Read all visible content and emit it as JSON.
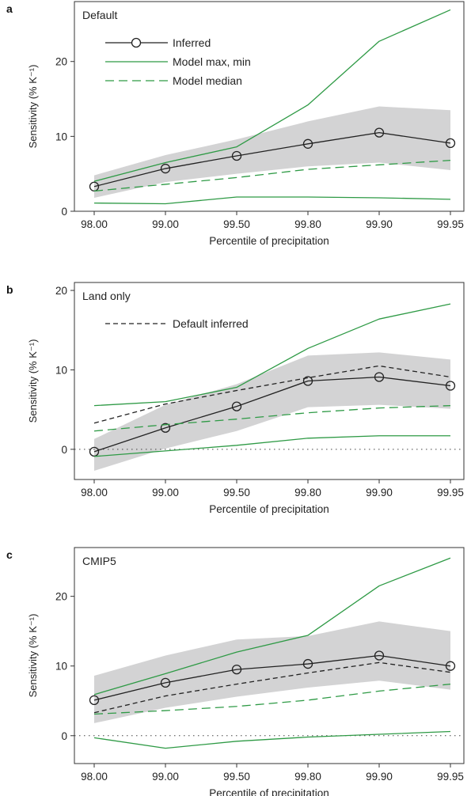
{
  "chart_data": [
    {
      "panel_label": "a",
      "type": "line",
      "title": "Default",
      "xlabel": "Percentile of precipitation",
      "ylabel": "Sensitivity (% K⁻¹)",
      "x": [
        "98.00",
        "99.00",
        "99.50",
        "99.80",
        "99.90",
        "99.95"
      ],
      "ylim": [
        0,
        28
      ],
      "yticks": [
        0,
        10,
        20
      ],
      "zero_line": false,
      "band": {
        "lower": [
          1.8,
          3.9,
          5.0,
          6.0,
          6.5,
          5.5
        ],
        "upper": [
          4.8,
          7.5,
          9.6,
          12.0,
          14.0,
          13.5
        ]
      },
      "series": [
        {
          "name": "Inferred",
          "style": "inferred",
          "values": [
            3.3,
            5.7,
            7.4,
            9.0,
            10.5,
            9.1
          ]
        },
        {
          "name": "Model max, min",
          "style": "model-max",
          "values": [
            4.0,
            6.5,
            8.6,
            14.2,
            22.7,
            26.9
          ]
        },
        {
          "name": "",
          "style": "model-min",
          "values": [
            1.1,
            1.0,
            1.9,
            1.9,
            1.8,
            1.6
          ]
        },
        {
          "name": "Model median",
          "style": "median",
          "values": [
            2.7,
            3.6,
            4.5,
            5.6,
            6.2,
            6.8
          ]
        }
      ],
      "legend": [
        {
          "label": "Inferred",
          "style": "inferred"
        },
        {
          "label": "Model max, min",
          "style": "model-max"
        },
        {
          "label": "Model median",
          "style": "median"
        }
      ]
    },
    {
      "panel_label": "b",
      "type": "line",
      "title": "Land only",
      "xlabel": "Percentile of precipitation",
      "ylabel": "Sensitivity (% K⁻¹)",
      "x": [
        "98.00",
        "99.00",
        "99.50",
        "99.80",
        "99.90",
        "99.95"
      ],
      "ylim": [
        -3.8,
        21
      ],
      "yticks": [
        0,
        10,
        20
      ],
      "zero_line": true,
      "band": {
        "lower": [
          -2.7,
          0.1,
          2.3,
          5.3,
          5.6,
          5.1
        ],
        "upper": [
          1.3,
          5.6,
          8.2,
          11.8,
          12.2,
          11.3
        ]
      },
      "series": [
        {
          "name": "",
          "style": "inferred",
          "values": [
            -0.3,
            2.7,
            5.4,
            8.6,
            9.1,
            8.0
          ]
        },
        {
          "name": "",
          "style": "model-max",
          "values": [
            5.5,
            6.0,
            7.8,
            12.7,
            16.4,
            18.3
          ]
        },
        {
          "name": "",
          "style": "model-min",
          "values": [
            -0.9,
            -0.2,
            0.5,
            1.4,
            1.7,
            1.7
          ]
        },
        {
          "name": "",
          "style": "median",
          "values": [
            2.3,
            3.1,
            3.8,
            4.6,
            5.2,
            5.5
          ]
        },
        {
          "name": "Default inferred",
          "style": "default-inferred",
          "values": [
            3.3,
            5.7,
            7.4,
            9.0,
            10.5,
            9.1
          ]
        }
      ],
      "legend": [
        {
          "label": "Default inferred",
          "style": "default-inferred"
        }
      ]
    },
    {
      "panel_label": "c",
      "type": "line",
      "title": "CMIP5",
      "xlabel": "Percentile of precipitation",
      "ylabel": "Sensitivity (% K⁻¹)",
      "x": [
        "98.00",
        "99.00",
        "99.50",
        "99.80",
        "99.90",
        "99.95"
      ],
      "ylim": [
        -4,
        27
      ],
      "yticks": [
        0,
        10,
        20
      ],
      "zero_line": true,
      "band": {
        "lower": [
          1.8,
          4.0,
          5.6,
          6.9,
          7.9,
          6.6
        ],
        "upper": [
          8.6,
          11.5,
          13.8,
          14.3,
          16.4,
          15.0
        ]
      },
      "series": [
        {
          "name": "",
          "style": "inferred",
          "values": [
            5.1,
            7.6,
            9.5,
            10.3,
            11.5,
            10.0
          ]
        },
        {
          "name": "",
          "style": "model-max",
          "values": [
            5.9,
            8.9,
            12.0,
            14.4,
            21.5,
            25.5
          ]
        },
        {
          "name": "",
          "style": "model-min",
          "values": [
            -0.3,
            -1.8,
            -0.8,
            -0.2,
            0.2,
            0.6
          ]
        },
        {
          "name": "",
          "style": "median",
          "values": [
            3.1,
            3.6,
            4.2,
            5.1,
            6.4,
            7.4
          ]
        },
        {
          "name": "",
          "style": "default-inferred",
          "values": [
            3.3,
            5.7,
            7.4,
            9.0,
            10.5,
            9.1
          ]
        }
      ],
      "legend": []
    }
  ],
  "colors": {
    "band": "#d3d3d4",
    "inferred": "#222222",
    "model": "#2e9a45",
    "axis": "#333333"
  }
}
